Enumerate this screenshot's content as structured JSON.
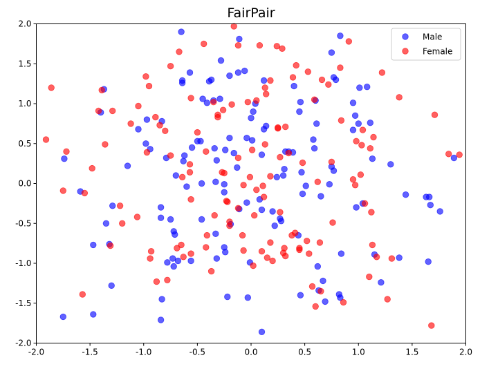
{
  "chart_data": {
    "type": "scatter",
    "title": "FairPair",
    "xlabel": "",
    "ylabel": "",
    "xlim": [
      -2.0,
      2.0
    ],
    "ylim": [
      -2.0,
      2.0
    ],
    "xticks": [
      "-2.0",
      "-1.5",
      "-1.0",
      "-0.5",
      "0.0",
      "0.5",
      "1.0",
      "1.5",
      "2.0"
    ],
    "yticks": [
      "-2.0",
      "-1.5",
      "-1.0",
      "-0.5",
      "0.0",
      "0.5",
      "1.0",
      "1.5",
      "2.0"
    ],
    "grid": false,
    "legend_position": "top-right",
    "series": [
      {
        "name": "Male",
        "color": "#0000ff",
        "points": [
          [
            -1.74,
            0.31
          ],
          [
            -1.75,
            -1.67
          ],
          [
            -1.59,
            -0.1
          ],
          [
            -1.47,
            -0.77
          ],
          [
            -1.47,
            -1.64
          ],
          [
            -1.37,
            1.18
          ],
          [
            -1.35,
            -0.5
          ],
          [
            -1.32,
            -0.76
          ],
          [
            -1.3,
            -1.28
          ],
          [
            -1.29,
            -0.28
          ],
          [
            -1.4,
            0.89
          ],
          [
            -1.15,
            0.22
          ],
          [
            -1.05,
            0.68
          ],
          [
            -0.98,
            0.5
          ],
          [
            -0.97,
            0.8
          ],
          [
            -0.94,
            0.43
          ],
          [
            -0.83,
            0.78
          ],
          [
            -0.84,
            -0.3
          ],
          [
            -0.84,
            -0.43
          ],
          [
            -0.83,
            -1.45
          ],
          [
            -0.84,
            -1.71
          ],
          [
            -0.79,
            0.32
          ],
          [
            -0.78,
            -0.99
          ],
          [
            -0.73,
            -0.94
          ],
          [
            -0.72,
            -1.04
          ],
          [
            -0.75,
            -0.45
          ],
          [
            -0.72,
            -0.6
          ],
          [
            -0.71,
            -0.64
          ],
          [
            -0.7,
            0.1
          ],
          [
            -0.68,
            -0.97
          ],
          [
            -0.63,
            0.28
          ],
          [
            -0.62,
            0.35
          ],
          [
            -0.57,
            1.39
          ],
          [
            -0.65,
            1.9
          ],
          [
            -0.64,
            1.26
          ],
          [
            -0.64,
            1.29
          ],
          [
            -0.6,
            -0.04
          ],
          [
            -0.56,
            -0.97
          ],
          [
            -0.55,
            0.45
          ],
          [
            -0.5,
            0.53
          ],
          [
            -0.47,
            0.53
          ],
          [
            -0.45,
            1.06
          ],
          [
            -0.46,
            -0.45
          ],
          [
            -0.46,
            0.0
          ],
          [
            -0.41,
            1.01
          ],
          [
            -0.39,
            1.28
          ],
          [
            -0.37,
            1.3
          ],
          [
            -0.35,
            1.04
          ],
          [
            -0.34,
            0.44
          ],
          [
            -0.33,
            0.02
          ],
          [
            -0.32,
            0.29
          ],
          [
            -0.33,
            -0.63
          ],
          [
            -0.32,
            -0.94
          ],
          [
            -0.28,
            1.54
          ],
          [
            -0.29,
            1.06
          ],
          [
            -0.25,
            -0.8
          ],
          [
            -0.24,
            -0.86
          ],
          [
            -0.25,
            -0.01
          ],
          [
            -0.24,
            0.42
          ],
          [
            -0.25,
            -0.11
          ],
          [
            -0.22,
            -1.42
          ],
          [
            -0.2,
            1.35
          ],
          [
            -0.2,
            0.57
          ],
          [
            -0.16,
            0.38
          ],
          [
            -0.19,
            -0.51
          ],
          [
            -0.12,
            1.39
          ],
          [
            -0.11,
            1.81
          ],
          [
            -0.13,
            0.2
          ],
          [
            -0.11,
            -0.32
          ],
          [
            -0.06,
            1.41
          ],
          [
            -0.04,
            -0.24
          ],
          [
            -0.04,
            0.57
          ],
          [
            -0.03,
            -1.43
          ],
          [
            -0.01,
            -0.99
          ],
          [
            0.0,
            0.82
          ],
          [
            0.01,
            0.54
          ],
          [
            0.02,
            0.9
          ],
          [
            0.04,
            1.0
          ],
          [
            0.08,
            -0.2
          ],
          [
            0.1,
            -0.33
          ],
          [
            0.1,
            -1.86
          ],
          [
            0.12,
            1.29
          ],
          [
            0.12,
            0.68
          ],
          [
            0.1,
            0.36
          ],
          [
            0.14,
            0.72
          ],
          [
            0.2,
            -0.35
          ],
          [
            0.22,
            -0.53
          ],
          [
            0.24,
            0.08
          ],
          [
            0.27,
            -0.44
          ],
          [
            0.28,
            -0.47
          ],
          [
            0.3,
            0.1
          ],
          [
            0.31,
            0.18
          ],
          [
            0.32,
            0.4
          ],
          [
            0.35,
            0.4
          ],
          [
            0.4,
            1.22
          ],
          [
            0.39,
            0.39
          ],
          [
            0.44,
            -0.65
          ],
          [
            0.45,
            0.9
          ],
          [
            0.46,
            1.02
          ],
          [
            0.47,
            0.14
          ],
          [
            0.48,
            -0.13
          ],
          [
            0.46,
            -1.4
          ],
          [
            0.51,
            -0.03
          ],
          [
            0.59,
            0.44
          ],
          [
            0.58,
            0.55
          ],
          [
            0.6,
            1.04
          ],
          [
            0.61,
            0.75
          ],
          [
            0.63,
            -1.34
          ],
          [
            0.62,
            -1.04
          ],
          [
            0.67,
            -1.22
          ],
          [
            0.65,
            -0.16
          ],
          [
            0.69,
            -1.48
          ],
          [
            0.75,
            0.21
          ],
          [
            0.73,
            -0.01
          ],
          [
            0.75,
            1.64
          ],
          [
            0.77,
            1.33
          ],
          [
            0.79,
            1.3
          ],
          [
            0.77,
            0.16
          ],
          [
            0.82,
            -1.39
          ],
          [
            0.83,
            -1.43
          ],
          [
            0.84,
            -0.88
          ],
          [
            0.83,
            1.85
          ],
          [
            0.95,
            1.01
          ],
          [
            0.95,
            0.67
          ],
          [
            0.97,
            0.85
          ],
          [
            0.98,
            -0.3
          ],
          [
            1.0,
            0.75
          ],
          [
            1.01,
            1.2
          ],
          [
            1.04,
            -0.25
          ],
          [
            1.08,
            1.21
          ],
          [
            1.11,
            0.76
          ],
          [
            1.13,
            0.31
          ],
          [
            1.15,
            -0.89
          ],
          [
            1.21,
            -1.24
          ],
          [
            1.3,
            0.24
          ],
          [
            1.38,
            -0.93
          ],
          [
            1.44,
            -0.14
          ],
          [
            1.63,
            -0.17
          ],
          [
            1.65,
            -0.98
          ],
          [
            1.66,
            -0.17
          ],
          [
            1.67,
            -0.27
          ],
          [
            1.76,
            -0.35
          ],
          [
            1.89,
            0.32
          ]
        ]
      },
      {
        "name": "Female",
        "color": "#ff0000",
        "points": [
          [
            -1.91,
            0.55
          ],
          [
            -1.86,
            1.2
          ],
          [
            -1.75,
            -0.09
          ],
          [
            -1.72,
            0.4
          ],
          [
            -1.57,
            -1.39
          ],
          [
            -1.55,
            -0.12
          ],
          [
            -1.48,
            0.19
          ],
          [
            -1.42,
            0.91
          ],
          [
            -1.39,
            1.17
          ],
          [
            -1.36,
            0.49
          ],
          [
            -1.31,
            -0.78
          ],
          [
            -1.29,
            0.91
          ],
          [
            -1.22,
            -0.28
          ],
          [
            -1.2,
            -0.5
          ],
          [
            -1.12,
            0.75
          ],
          [
            -1.06,
            -0.42
          ],
          [
            -1.05,
            0.97
          ],
          [
            -0.98,
            1.34
          ],
          [
            -0.97,
            0.39
          ],
          [
            -0.95,
            1.22
          ],
          [
            -0.93,
            -0.85
          ],
          [
            -0.94,
            -0.94
          ],
          [
            -0.89,
            0.83
          ],
          [
            -0.88,
            -1.23
          ],
          [
            -0.85,
            0.73
          ],
          [
            -0.8,
            0.66
          ],
          [
            -0.78,
            -1.21
          ],
          [
            -0.75,
            1.47
          ],
          [
            -0.75,
            0.35
          ],
          [
            -0.69,
            -0.81
          ],
          [
            -0.67,
            1.65
          ],
          [
            -0.65,
            -0.77
          ],
          [
            -0.63,
            -0.92
          ],
          [
            -0.64,
            0.08
          ],
          [
            -0.57,
            0.24
          ],
          [
            -0.57,
            0.14
          ],
          [
            -0.56,
            -0.88
          ],
          [
            -0.56,
            -0.2
          ],
          [
            -0.56,
            1.07
          ],
          [
            -0.5,
            0.64
          ],
          [
            -0.44,
            1.75
          ],
          [
            -0.42,
            0.4
          ],
          [
            -0.42,
            -0.8
          ],
          [
            -0.41,
            -0.65
          ],
          [
            -0.37,
            -1.1
          ],
          [
            -0.35,
            1.02
          ],
          [
            -0.34,
            -0.4
          ],
          [
            -0.31,
            0.83
          ],
          [
            -0.31,
            0.86
          ],
          [
            -0.27,
            0.14
          ],
          [
            -0.26,
            0.92
          ],
          [
            -0.25,
            0.13
          ],
          [
            -0.23,
            -0.22
          ],
          [
            -0.22,
            -0.23
          ],
          [
            -0.2,
            -0.53
          ],
          [
            -0.2,
            -0.48
          ],
          [
            -0.18,
            0.99
          ],
          [
            -0.16,
            1.97
          ],
          [
            -0.12,
            1.73
          ],
          [
            -0.12,
            -0.31
          ],
          [
            -0.12,
            0.32
          ],
          [
            -0.08,
            -0.65
          ],
          [
            -0.07,
            -0.84
          ],
          [
            -0.07,
            -0.02
          ],
          [
            -0.03,
            1.02
          ],
          [
            -0.01,
            0.08
          ],
          [
            0.01,
            0.42
          ],
          [
            0.02,
            -1.03
          ],
          [
            0.03,
            -0.4
          ],
          [
            0.05,
            -0.08
          ],
          [
            0.05,
            1.04
          ],
          [
            0.08,
            1.73
          ],
          [
            0.1,
            -0.85
          ],
          [
            0.11,
            -0.03
          ],
          [
            0.12,
            -0.17
          ],
          [
            0.13,
            1.2
          ],
          [
            0.13,
            0.49
          ],
          [
            0.14,
            1.12
          ],
          [
            0.15,
            -0.93
          ],
          [
            0.18,
            1.29
          ],
          [
            0.18,
            0.09
          ],
          [
            0.18,
            -0.74
          ],
          [
            0.2,
            -0.97
          ],
          [
            0.24,
            1.72
          ],
          [
            0.25,
            0.69
          ],
          [
            0.25,
            0.7
          ],
          [
            0.27,
            0.33
          ],
          [
            0.27,
            -0.36
          ],
          [
            0.29,
            1.69
          ],
          [
            0.3,
            -0.87
          ],
          [
            0.31,
            -0.81
          ],
          [
            0.32,
            0.71
          ],
          [
            0.32,
            -0.91
          ],
          [
            0.35,
            0.38
          ],
          [
            0.38,
            -0.65
          ],
          [
            0.39,
            1.33
          ],
          [
            0.41,
            -0.62
          ],
          [
            0.42,
            1.48
          ],
          [
            0.45,
            -0.83
          ],
          [
            0.45,
            -0.81
          ],
          [
            0.48,
            0.26
          ],
          [
            0.52,
            -0.72
          ],
          [
            0.53,
            1.4
          ],
          [
            0.54,
            -0.88
          ],
          [
            0.57,
            -1.29
          ],
          [
            0.59,
            1.05
          ],
          [
            0.6,
            -1.54
          ],
          [
            0.62,
            0.02
          ],
          [
            0.65,
            -1.35
          ],
          [
            0.64,
            -0.74
          ],
          [
            0.66,
            1.3
          ],
          [
            0.72,
            1.24
          ],
          [
            0.75,
            0.27
          ],
          [
            0.76,
            -0.49
          ],
          [
            0.83,
            1.45
          ],
          [
            0.84,
            0.79
          ],
          [
            0.86,
            -1.49
          ],
          [
            0.91,
            1.78
          ],
          [
            0.95,
            0.05
          ],
          [
            0.97,
            -0.02
          ],
          [
            0.98,
            0.53
          ],
          [
            1.02,
            0.11
          ],
          [
            1.04,
            0.67
          ],
          [
            1.03,
            0.48
          ],
          [
            1.06,
            -0.25
          ],
          [
            1.1,
            -1.17
          ],
          [
            1.11,
            0.44
          ],
          [
            1.12,
            -0.36
          ],
          [
            1.13,
            -0.77
          ],
          [
            1.14,
            0.58
          ],
          [
            1.17,
            -0.92
          ],
          [
            1.22,
            1.39
          ],
          [
            1.27,
            -1.45
          ],
          [
            1.31,
            -0.94
          ],
          [
            1.38,
            1.08
          ],
          [
            1.68,
            -1.78
          ],
          [
            1.71,
            0.86
          ],
          [
            1.84,
            0.37
          ],
          [
            1.94,
            0.36
          ]
        ]
      }
    ]
  }
}
